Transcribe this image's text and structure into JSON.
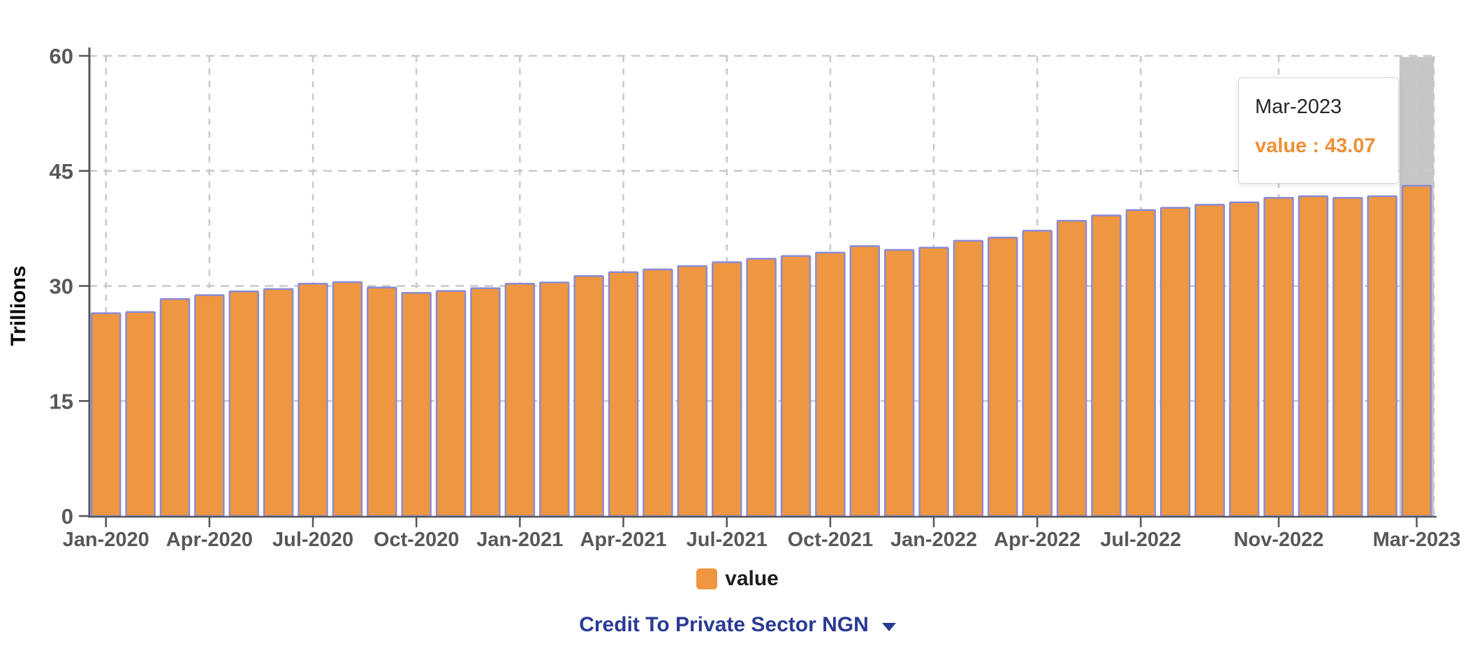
{
  "chart_data": {
    "type": "bar",
    "title": "",
    "xlabel": "",
    "ylabel": "Trillions",
    "ylim": [
      0,
      60
    ],
    "yticks": [
      0,
      15,
      30,
      45,
      60
    ],
    "grid": "dashed-both-axes",
    "legend_position": "bottom",
    "categories": [
      "Jan-2020",
      "Feb-2020",
      "Mar-2020",
      "Apr-2020",
      "May-2020",
      "Jun-2020",
      "Jul-2020",
      "Aug-2020",
      "Sep-2020",
      "Oct-2020",
      "Nov-2020",
      "Dec-2020",
      "Jan-2021",
      "Feb-2021",
      "Mar-2021",
      "Apr-2021",
      "May-2021",
      "Jun-2021",
      "Jul-2021",
      "Aug-2021",
      "Sep-2021",
      "Oct-2021",
      "Nov-2021",
      "Dec-2021",
      "Jan-2022",
      "Feb-2022",
      "Mar-2022",
      "Apr-2022",
      "May-2022",
      "Jun-2022",
      "Jul-2022",
      "Aug-2022",
      "Sep-2022",
      "Oct-2022",
      "Nov-2022",
      "Dec-2022",
      "Jan-2023",
      "Feb-2023",
      "Mar-2023"
    ],
    "series": [
      {
        "name": "value",
        "values": [
          26.45,
          26.6,
          28.3,
          28.8,
          29.3,
          29.6,
          30.3,
          30.5,
          29.8,
          29.1,
          29.35,
          29.7,
          30.3,
          30.45,
          31.3,
          31.8,
          32.15,
          32.6,
          33.1,
          33.55,
          33.9,
          34.35,
          35.2,
          34.7,
          35.0,
          35.9,
          36.3,
          37.2,
          38.5,
          39.2,
          39.9,
          40.2,
          40.6,
          40.9,
          41.5,
          41.7,
          41.5,
          41.7,
          43.07
        ]
      }
    ],
    "xtick_indices": [
      0,
      3,
      6,
      9,
      12,
      15,
      18,
      21,
      24,
      27,
      30,
      34,
      38
    ],
    "xtick_labels": [
      "Jan-2020",
      "Apr-2020",
      "Jul-2020",
      "Oct-2020",
      "Jan-2021",
      "Apr-2021",
      "Jul-2021",
      "Oct-2021",
      "Jan-2022",
      "Apr-2022",
      "Jul-2022",
      "Nov-2022",
      "Mar-2023"
    ],
    "highlighted_index": 38
  },
  "y_axis": {
    "title": "Trillions"
  },
  "tooltip": {
    "title": "Mar-2023",
    "value_text": "value : 43.07"
  },
  "legend": {
    "label": "value"
  },
  "selector": {
    "label": "Credit To Private Sector NGN",
    "caret_icon": "triangle-down-icon"
  },
  "colors": {
    "bar_fill": "#EF9641",
    "bar_stroke": "#8B8BD3",
    "grid_line": "#C9C9C9",
    "axis_line": "#55555A",
    "tick_label": "#58585B",
    "highlight_band": "#C6C6C6",
    "legend_text": "#1D1D1F",
    "selector_navy": "#2A3B94",
    "tooltip_title_text": "#26262B",
    "tooltip_value_text": "#EF9037"
  }
}
